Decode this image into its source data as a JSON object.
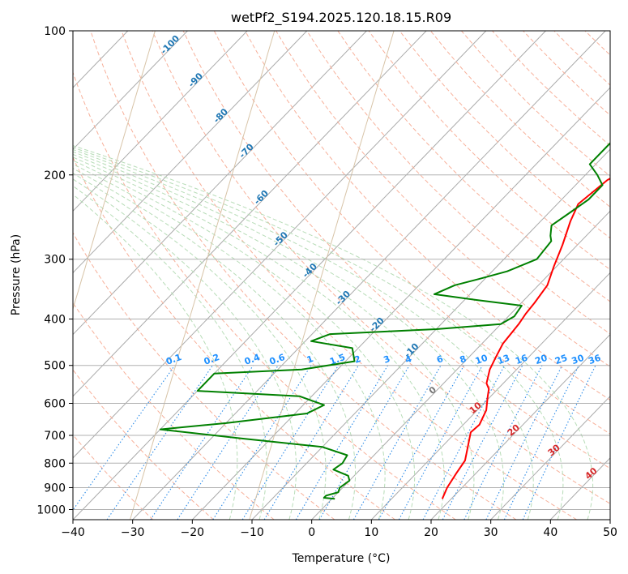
{
  "chart_data": {
    "type": "line",
    "title": "wetPf2_S194.2025.120.18.15.R09",
    "xlabel": "Temperature (°C)",
    "ylabel": "Pressure (hPa)",
    "xlim": [
      -40,
      50
    ],
    "ylim": [
      1050,
      100
    ],
    "y_scale": "log",
    "grid": true,
    "x_ticks": [
      -40,
      -30,
      -20,
      -10,
      0,
      10,
      20,
      30,
      40,
      50
    ],
    "y_ticks": [
      1000,
      900,
      800,
      700,
      600,
      500,
      400,
      300,
      200,
      100
    ],
    "series": [
      {
        "color": "#ff0000",
        "points": [
          [
            18.5,
            950
          ],
          [
            17.5,
            900
          ],
          [
            16.7,
            840
          ],
          [
            16.1,
            790
          ],
          [
            14.0,
            730
          ],
          [
            12.5,
            690
          ],
          [
            12.7,
            665
          ],
          [
            11.5,
            620
          ],
          [
            9.5,
            580
          ],
          [
            8.5,
            560
          ],
          [
            7.2,
            545
          ],
          [
            5.5,
            510
          ],
          [
            4.5,
            480
          ],
          [
            3.5,
            450
          ],
          [
            3.0,
            410
          ],
          [
            2.5,
            390
          ],
          [
            2.2,
            370
          ],
          [
            1.5,
            340
          ],
          [
            -0.5,
            310
          ],
          [
            -2.5,
            280
          ],
          [
            -5.0,
            250
          ],
          [
            -6.5,
            230
          ],
          [
            -5.5,
            205
          ],
          [
            -4.0,
            195
          ],
          [
            1.0,
            180
          ],
          [
            4.0,
            168
          ],
          [
            7.0,
            155
          ],
          [
            9.0,
            145
          ],
          [
            11.0,
            132
          ],
          [
            13.5,
            120
          ],
          [
            15.0,
            115
          ],
          [
            18.0,
            108
          ],
          [
            20.0,
            102
          ],
          [
            21.2,
            100
          ]
        ]
      },
      {
        "color": "#008000",
        "points": [
          [
            0.5,
            950
          ],
          [
            -1.5,
            945
          ],
          [
            -1.5,
            935
          ],
          [
            0.0,
            920
          ],
          [
            -0.5,
            900
          ],
          [
            0.0,
            870
          ],
          [
            -1.0,
            850
          ],
          [
            -4.5,
            825
          ],
          [
            -4.0,
            800
          ],
          [
            -4.5,
            770
          ],
          [
            -10.0,
            740
          ],
          [
            -25.0,
            710
          ],
          [
            -40.0,
            680
          ],
          [
            -30.0,
            660
          ],
          [
            -18.0,
            630
          ],
          [
            -16.5,
            605
          ],
          [
            -22.0,
            580
          ],
          [
            -40.0,
            565
          ],
          [
            -40.0,
            520
          ],
          [
            -26.0,
            510
          ],
          [
            -18.5,
            490
          ],
          [
            -21.0,
            460
          ],
          [
            -29.0,
            445
          ],
          [
            -27.0,
            430
          ],
          [
            -10.0,
            420
          ],
          [
            0.0,
            410
          ],
          [
            1.0,
            395
          ],
          [
            0.5,
            375
          ],
          [
            -8.0,
            365
          ],
          [
            -16.0,
            355
          ],
          [
            -14.0,
            340
          ],
          [
            -11.0,
            330
          ],
          [
            -7.5,
            318
          ],
          [
            -4.5,
            300
          ],
          [
            -5.0,
            275
          ],
          [
            -6.0,
            268
          ],
          [
            -7.5,
            255
          ],
          [
            -6.5,
            240
          ],
          [
            -5.5,
            225
          ],
          [
            -5.5,
            210
          ],
          [
            -8.0,
            200
          ],
          [
            -11.0,
            190
          ],
          [
            -11.0,
            175
          ],
          [
            -11.0,
            165
          ],
          [
            -10.5,
            155
          ],
          [
            -9.0,
            145
          ],
          [
            -7.0,
            135
          ],
          [
            -5.5,
            125
          ],
          [
            -3.5,
            115
          ],
          [
            -1.0,
            105
          ],
          [
            0.5,
            100
          ]
        ]
      }
    ],
    "isotherm_labels": {
      "color": "#d62728",
      "values": [
        "0",
        "10",
        "20",
        "30",
        "40"
      ]
    },
    "dry_adiabat_labels": {
      "color": "#1f77b4",
      "values": [
        "-100",
        "-90",
        "-80",
        "-70",
        "-60",
        "-50",
        "-40",
        "-30",
        "-20",
        "-10"
      ]
    },
    "mixing_ratio_labels": {
      "color": "#1e90ff",
      "values": [
        "0.1",
        "0.2",
        "0.4",
        "0.6",
        "1",
        "1.5",
        "2",
        "3",
        "4",
        "6",
        "8",
        "10",
        "13",
        "16",
        "20",
        "25",
        "30",
        "36"
      ]
    }
  }
}
